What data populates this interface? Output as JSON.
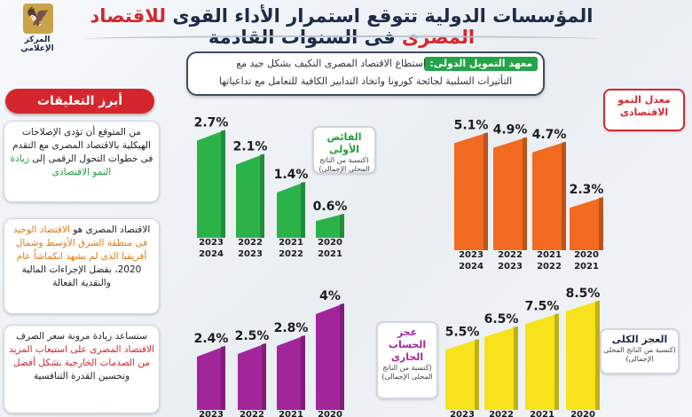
{
  "header": {
    "title_part1": "المؤسسات الدولية تتوقع استمرار الأداء القوى",
    "title_highlight": "للاقتصاد المصرى",
    "title_part2": "فى السنوات القادمة",
    "logo_text": "المركز الإعلامي"
  },
  "quote": {
    "source": "معهد التمويل الدولى:",
    "line1": "استطاع الاقتصاد المصرى التكيف بشكل جيد مع",
    "line2": "التأثيرات السلبية لجائحة كورونا واتخاذ التدابير الكافية للتعامل مع تداعياتها"
  },
  "sidebar": {
    "heading": "أبرز التعليقات",
    "card1": {
      "t1": "من المتوقع أن تؤدى الإصلاحات الهيكلية بالاقتصاد المصرى مع التقدم فى خطوات التحول الرقمى إلى",
      "t2": "زيادة النمو الاقتصادى"
    },
    "card2": {
      "t1": "الاقتصاد المصرى هو",
      "t2": "الاقتصاد الوحيد فى منطقة الشرق الأوسط وشمال أفريقيا الذى لم يشهد انكماشاً عام",
      "t3": "2020، بفضل الإجراءات المالية والنقدية الفعالة"
    },
    "card3": {
      "t1": "ستساعد زيادة مرونة سعر الصرف",
      "t2": "الاقتصاد المصرى على استيعاب المزيد من الصدمات الخارجية بشكل أفضل",
      "t3": "وتحسين القدرة التنافسية"
    }
  },
  "panels": {
    "gdp_growth": {
      "title": "معدل النمو الاقتصادى",
      "note": ""
    },
    "primary_surplus": {
      "title": "الفائض الأولى",
      "note": "(كنسبة من الناتج المحلى الإجمالى)"
    },
    "current_account": {
      "title": "عجز الحساب الجارى",
      "note": "(كنسبة من الناتج المحلى الإجمالى)"
    },
    "budget_deficit": {
      "title": "العجز الكلى",
      "note": "(كنسبة من الناتج المحلى الإجمالى)"
    }
  },
  "colors": {
    "orange": "#f26a1f",
    "green": "#2bb34a",
    "purple": "#a3259a",
    "yellow": "#f7e21c",
    "red": "#d7262e"
  },
  "chart_data": [
    {
      "name": "gdp_growth",
      "type": "bar",
      "categories": [
        "2020 2021",
        "2021 2022",
        "2022 2023",
        "2023 2024"
      ],
      "values": [
        2.3,
        4.7,
        4.9,
        5.1
      ],
      "labels": [
        "2.3%",
        "4.7%",
        "4.9%",
        "5.1%"
      ]
    },
    {
      "name": "primary_surplus",
      "type": "bar",
      "categories": [
        "2020 2021",
        "2021 2022",
        "2022 2023",
        "2023 2024"
      ],
      "values": [
        0.6,
        1.4,
        2.1,
        2.7
      ],
      "labels": [
        "0.6%",
        "1.4%",
        "2.1%",
        "2.7%"
      ]
    },
    {
      "name": "budget_deficit",
      "type": "bar",
      "categories": [
        "2020",
        "2021",
        "2022",
        "2023"
      ],
      "values": [
        8.5,
        7.5,
        6.5,
        5.5
      ],
      "labels": [
        "8.5%",
        "7.5%",
        "6.5%",
        "5.5%"
      ]
    },
    {
      "name": "current_account",
      "type": "bar",
      "categories": [
        "2020",
        "2021",
        "2022",
        "2023"
      ],
      "values": [
        4,
        2.8,
        2.5,
        2.4
      ],
      "labels": [
        "4%",
        "2.8%",
        "2.5%",
        "2.4%"
      ]
    }
  ]
}
